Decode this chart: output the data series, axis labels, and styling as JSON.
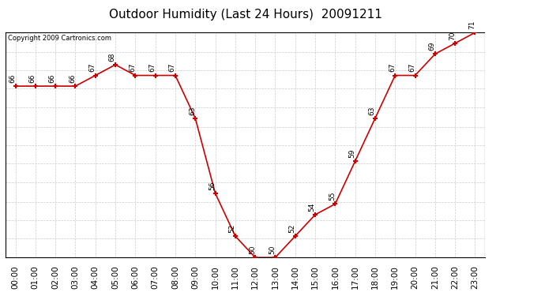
{
  "title": "Outdoor Humidity (Last 24 Hours)  20091211",
  "copyright": "Copyright 2009 Cartronics.com",
  "hours": [
    "00:00",
    "01:00",
    "02:00",
    "03:00",
    "04:00",
    "05:00",
    "06:00",
    "07:00",
    "08:00",
    "09:00",
    "10:00",
    "11:00",
    "12:00",
    "13:00",
    "14:00",
    "15:00",
    "16:00",
    "17:00",
    "18:00",
    "19:00",
    "20:00",
    "21:00",
    "22:00",
    "23:00"
  ],
  "x_indices": [
    0,
    1,
    2,
    3,
    4,
    5,
    6,
    7,
    8,
    9,
    10,
    11,
    12,
    13,
    14,
    15,
    16,
    17,
    18,
    19,
    20,
    21,
    22,
    23
  ],
  "values": [
    66,
    66,
    66,
    66,
    67,
    68,
    67,
    67,
    67,
    63,
    56,
    52,
    50,
    50,
    52,
    54,
    55,
    59,
    63,
    67,
    67,
    69,
    70,
    71
  ],
  "ylim": [
    50.0,
    71.0
  ],
  "yticks": [
    50.0,
    51.8,
    53.5,
    55.2,
    57.0,
    58.8,
    60.5,
    62.2,
    64.0,
    65.8,
    67.5,
    69.2,
    71.0
  ],
  "line_color": "#cc0000",
  "marker_color": "#cc0000",
  "bg_color": "#ffffff",
  "grid_color": "#cccccc",
  "title_fontsize": 11,
  "label_fontsize": 6.5,
  "axis_label_fontsize": 7.5
}
